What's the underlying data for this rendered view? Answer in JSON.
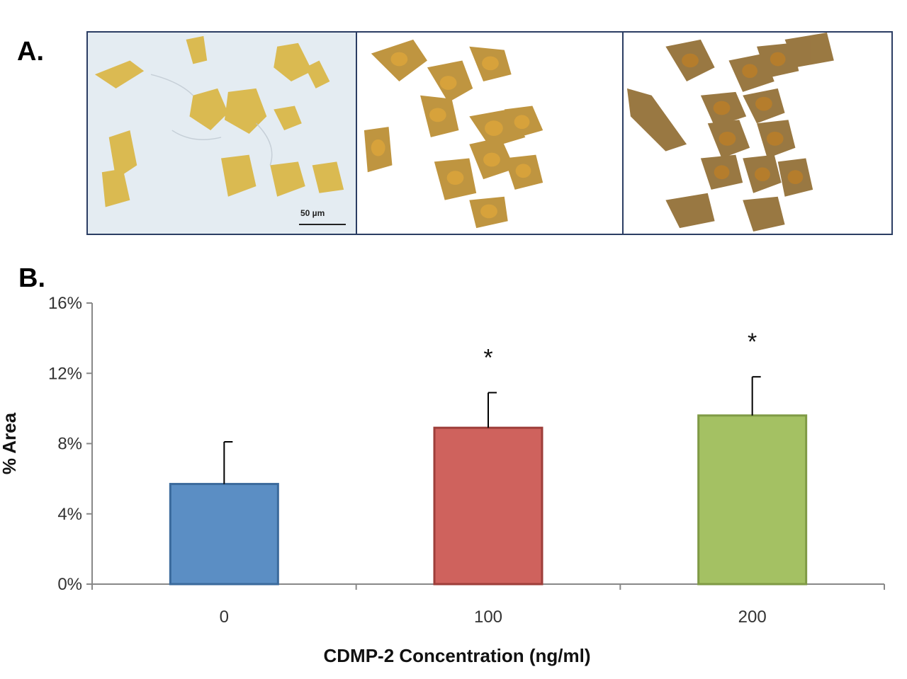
{
  "panel_a_label": "A.",
  "panel_b_label": "B.",
  "micrographs": [
    {
      "name": "micrograph-0",
      "cell_color": "#d9b236",
      "nucleus_color": "#c99b1e",
      "background": "#e4ecf2"
    },
    {
      "name": "micrograph-100",
      "cell_color": "#b98a2c",
      "nucleus_color": "#d7a23b",
      "background": "#ffffff"
    },
    {
      "name": "micrograph-200",
      "cell_color": "#8f6a2e",
      "nucleus_color": "#b57d2c",
      "background": "#ffffff"
    }
  ],
  "scale_bar_label": "50 µm",
  "chart_data": {
    "type": "bar",
    "categories": [
      "0",
      "100",
      "200"
    ],
    "values": [
      5.7,
      8.9,
      9.6
    ],
    "errors": [
      2.4,
      2.0,
      2.2
    ],
    "significance": [
      "",
      "*",
      "*"
    ],
    "colors": [
      "#5b8ec4",
      "#cf625d",
      "#a4c163"
    ],
    "edge_colors": [
      "#3b6a9c",
      "#9e3e3a",
      "#7f9a45"
    ],
    "xlabel": "CDMP-2 Concentration (ng/ml)",
    "ylabel": "% Area",
    "ylim": [
      0,
      16
    ],
    "yticks": [
      0,
      4,
      8,
      12,
      16
    ],
    "ytick_labels": [
      "0%",
      "4%",
      "8%",
      "12%",
      "16%"
    ]
  }
}
